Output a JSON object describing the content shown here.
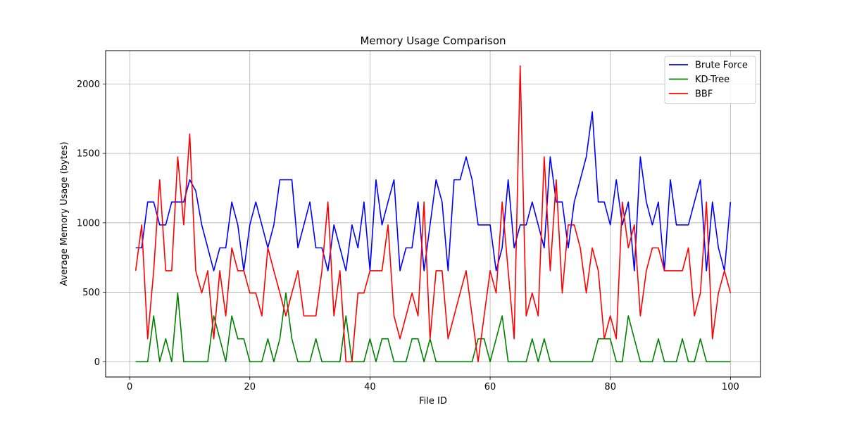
{
  "chart_data": {
    "type": "line",
    "title": "Memory Usage Comparison",
    "xlabel": "File ID",
    "ylabel": "Average Memory Usage (bytes)",
    "xlim": [
      -4,
      105
    ],
    "ylim": [
      -110,
      2240
    ],
    "xticks": [
      0,
      20,
      40,
      60,
      80,
      100
    ],
    "yticks": [
      0,
      500,
      1000,
      1500,
      2000
    ],
    "grid": true,
    "legend_position": "top-right",
    "x": [
      1,
      2,
      3,
      4,
      5,
      6,
      7,
      8,
      9,
      10,
      11,
      12,
      13,
      14,
      15,
      16,
      17,
      18,
      19,
      20,
      21,
      22,
      23,
      24,
      25,
      26,
      27,
      28,
      29,
      30,
      31,
      32,
      33,
      34,
      35,
      36,
      37,
      38,
      39,
      40,
      41,
      42,
      43,
      44,
      45,
      46,
      47,
      48,
      49,
      50,
      51,
      52,
      53,
      54,
      55,
      56,
      57,
      58,
      59,
      60,
      61,
      62,
      63,
      64,
      65,
      66,
      67,
      68,
      69,
      70,
      71,
      72,
      73,
      74,
      75,
      76,
      77,
      78,
      79,
      80,
      81,
      82,
      83,
      84,
      85,
      86,
      87,
      88,
      89,
      90,
      91,
      92,
      93,
      94,
      95,
      96,
      97,
      98,
      99,
      100
    ],
    "series": [
      {
        "name": "Brute Force",
        "color": "#0000ff",
        "values": [
          820,
          820,
          1150,
          1150,
          985,
          985,
          1150,
          1150,
          1150,
          1310,
          1230,
          985,
          820,
          655,
          820,
          820,
          1150,
          985,
          655,
          985,
          1150,
          985,
          820,
          985,
          1310,
          1310,
          1310,
          820,
          985,
          1150,
          820,
          820,
          655,
          985,
          820,
          655,
          985,
          820,
          1150,
          655,
          1310,
          985,
          1150,
          1310,
          655,
          820,
          820,
          1150,
          655,
          985,
          1310,
          1150,
          655,
          1310,
          1310,
          1475,
          1310,
          985,
          985,
          985,
          655,
          820,
          1310,
          820,
          985,
          985,
          1150,
          985,
          820,
          1475,
          1150,
          1150,
          820,
          1150,
          1310,
          1475,
          1800,
          1150,
          1150,
          985,
          1310,
          985,
          1150,
          655,
          1475,
          1150,
          985,
          1150,
          655,
          1310,
          985,
          985,
          985,
          1150,
          1310,
          655,
          1150,
          820,
          655,
          1150
        ]
      },
      {
        "name": "KD-Tree",
        "color": "#008000",
        "values": [
          0,
          0,
          0,
          330,
          0,
          165,
          0,
          495,
          0,
          0,
          0,
          0,
          0,
          330,
          165,
          0,
          330,
          165,
          165,
          0,
          0,
          0,
          165,
          0,
          165,
          495,
          165,
          0,
          0,
          0,
          165,
          0,
          0,
          0,
          0,
          330,
          0,
          0,
          0,
          165,
          0,
          165,
          165,
          0,
          0,
          0,
          165,
          165,
          0,
          165,
          0,
          0,
          0,
          0,
          0,
          0,
          0,
          165,
          165,
          0,
          165,
          330,
          0,
          0,
          0,
          0,
          165,
          0,
          165,
          0,
          0,
          0,
          0,
          0,
          0,
          0,
          0,
          165,
          165,
          165,
          0,
          0,
          330,
          165,
          0,
          0,
          0,
          165,
          0,
          0,
          0,
          165,
          0,
          0,
          165,
          0,
          0,
          0,
          0,
          0
        ]
      },
      {
        "name": "BBF",
        "color": "#ff0000",
        "values": [
          655,
          985,
          165,
          655,
          1310,
          655,
          655,
          1475,
          985,
          1640,
          655,
          495,
          655,
          165,
          655,
          330,
          820,
          655,
          655,
          495,
          495,
          330,
          820,
          655,
          495,
          330,
          495,
          655,
          330,
          330,
          330,
          655,
          1150,
          330,
          655,
          0,
          0,
          495,
          495,
          655,
          655,
          655,
          985,
          330,
          165,
          330,
          495,
          330,
          1150,
          165,
          655,
          655,
          165,
          330,
          495,
          655,
          330,
          0,
          330,
          655,
          495,
          1150,
          655,
          165,
          2130,
          330,
          495,
          330,
          1475,
          655,
          1310,
          495,
          985,
          985,
          820,
          495,
          820,
          655,
          165,
          330,
          165,
          1150,
          820,
          985,
          330,
          655,
          820,
          820,
          655,
          655,
          655,
          655,
          820,
          330,
          495,
          1150,
          165,
          495,
          655,
          495
        ]
      }
    ]
  }
}
